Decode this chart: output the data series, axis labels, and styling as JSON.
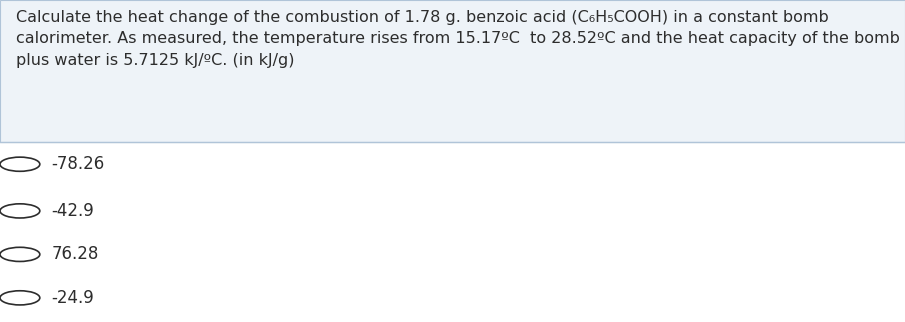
{
  "question": "Calculate the heat change of the combustion of 1.78 g. benzoic acid (C₆H₅COOH) in a constant bomb\ncalorimeter. As measured, the temperature rises from 15.17ºC  to 28.52ºC and the heat capacity of the bomb\nplus water is 5.7125 kJ/ºC. (in kJ/g)",
  "options": [
    "-78.26",
    "-42.9",
    "76.28",
    "-24.9"
  ],
  "bg_color": "#ffffff",
  "text_color": "#2d2d2d",
  "question_fontsize": 11.5,
  "option_fontsize": 12,
  "header_box_color": "#eef3f8",
  "separator_color": "#b0c4d8"
}
